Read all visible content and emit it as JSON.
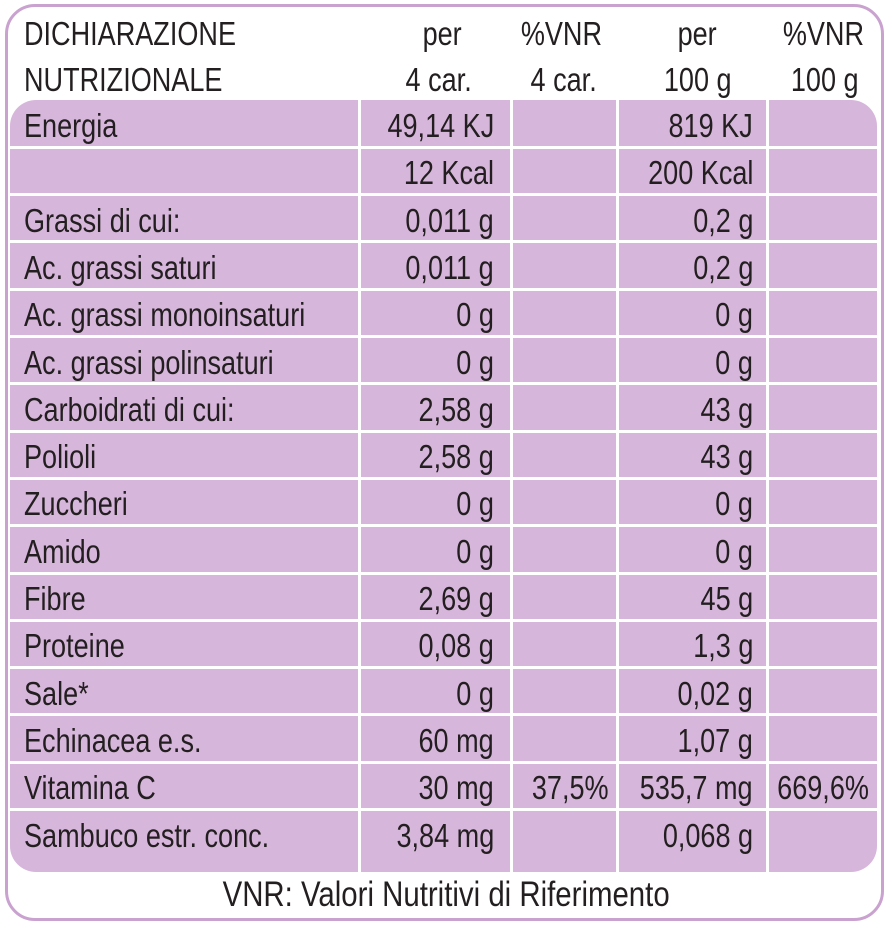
{
  "header": {
    "col0": [
      "DICHIARAZIONE",
      "NUTRIZIONALE"
    ],
    "col1": [
      "per",
      "4 car."
    ],
    "col2": [
      "%VNR",
      "4 car."
    ],
    "col3": [
      "per",
      "100 g"
    ],
    "col4": [
      "%VNR",
      "100 g"
    ]
  },
  "rows": [
    [
      "Energia",
      "49,14 KJ",
      "",
      "819 KJ",
      ""
    ],
    [
      "",
      "12 Kcal",
      "",
      "200 Kcal",
      ""
    ],
    [
      "Grassi di cui:",
      "0,011 g",
      "",
      "0,2 g",
      ""
    ],
    [
      "Ac. grassi saturi",
      "0,011 g",
      "",
      "0,2 g",
      ""
    ],
    [
      "Ac. grassi monoinsaturi",
      "0 g",
      "",
      "0 g",
      ""
    ],
    [
      "Ac. grassi polinsaturi",
      "0 g",
      "",
      "0 g",
      ""
    ],
    [
      "Carboidrati di cui:",
      "2,58 g",
      "",
      "43 g",
      ""
    ],
    [
      "Polioli",
      "2,58 g",
      "",
      "43 g",
      ""
    ],
    [
      "Zuccheri",
      "0 g",
      "",
      "0 g",
      ""
    ],
    [
      "Amido",
      "0 g",
      "",
      "0 g",
      ""
    ],
    [
      "Fibre",
      "2,69 g",
      "",
      "45 g",
      ""
    ],
    [
      "Proteine",
      "0,08 g",
      "",
      "1,3 g",
      ""
    ],
    [
      "Sale*",
      "0 g",
      "",
      "0,02 g",
      ""
    ],
    [
      "Echinacea e.s.",
      "60 mg",
      "",
      "1,07 g",
      ""
    ],
    [
      "Vitamina C",
      "30 mg",
      "37,5%",
      "535,7 mg",
      "669,6%"
    ],
    [
      "Sambuco estr. conc.",
      "3,84 mg",
      "",
      "0,068 g",
      ""
    ]
  ],
  "footer": "VNR: Valori Nutritivi di Riferimento",
  "colors": {
    "border": "#c9a2cf",
    "table_bg": "#d7b6db",
    "text": "#231f20"
  }
}
